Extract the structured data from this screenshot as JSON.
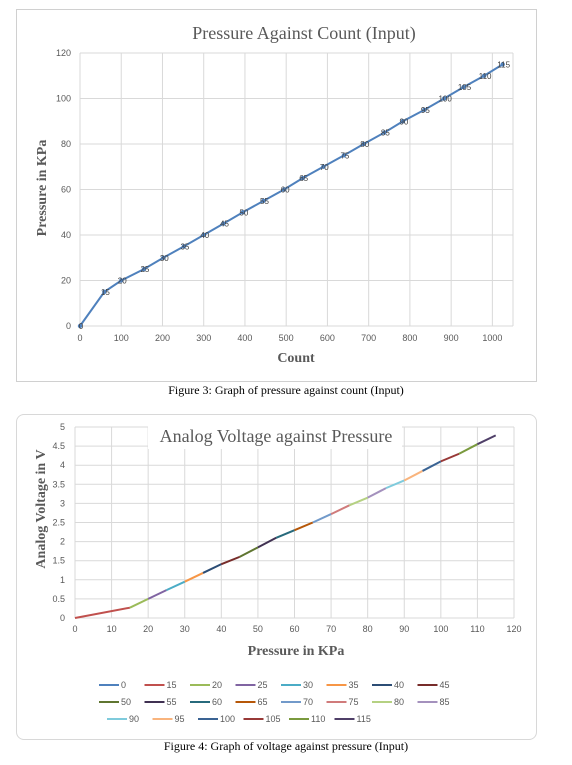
{
  "chart_data": [
    {
      "type": "line",
      "title": "Pressure Against Count (Input)",
      "xlabel": "Count",
      "ylabel": "Pressure in KPa",
      "xlim": [
        0,
        1050
      ],
      "ylim": [
        0,
        120
      ],
      "xticks": [
        0,
        100,
        200,
        300,
        400,
        500,
        600,
        700,
        800,
        900,
        1000
      ],
      "yticks": [
        0,
        20,
        40,
        60,
        80,
        100,
        120
      ],
      "grid": true,
      "legend": "none",
      "color": "#4f81bd",
      "x": [
        0,
        59,
        100,
        155,
        202,
        252,
        300,
        348,
        395,
        445,
        495,
        540,
        590,
        640,
        688,
        738,
        783,
        835,
        883,
        930,
        980,
        1025
      ],
      "y": [
        0,
        15,
        20,
        25,
        30,
        35,
        40,
        45,
        50,
        55,
        60,
        65,
        70,
        75,
        80,
        85,
        90,
        95,
        100,
        105,
        110,
        115
      ],
      "data_labels": [
        "0",
        "15",
        "20",
        "25",
        "30",
        "35",
        "40",
        "45",
        "50",
        "55",
        "60",
        "65",
        "70",
        "75",
        "80",
        "85",
        "90",
        "95",
        "100",
        "105",
        "110",
        "115"
      ]
    },
    {
      "type": "line",
      "title": "Analog Voltage against Pressure",
      "xlabel": "Pressure in KPa",
      "ylabel": "Analog Voltage in V",
      "xlim": [
        0,
        120
      ],
      "ylim": [
        0,
        5
      ],
      "xticks": [
        0,
        10,
        20,
        30,
        40,
        50,
        60,
        70,
        80,
        90,
        100,
        110,
        120
      ],
      "yticks": [
        0,
        0.5,
        1,
        1.5,
        2,
        2.5,
        3,
        3.5,
        4,
        4.5,
        5
      ],
      "ytick_labels": [
        "0",
        "0.5",
        "1",
        "1.5",
        "2",
        "2.5",
        "3",
        "3.5",
        "4",
        "4.5",
        "5"
      ],
      "grid": true,
      "legend": "bottom",
      "x": [
        0,
        15,
        20,
        25,
        30,
        35,
        40,
        45,
        50,
        55,
        60,
        65,
        70,
        75,
        80,
        85,
        90,
        95,
        100,
        105,
        110,
        115
      ],
      "y": [
        0,
        0.27,
        0.5,
        0.73,
        0.95,
        1.18,
        1.41,
        1.6,
        1.85,
        2.1,
        2.3,
        2.5,
        2.72,
        2.95,
        3.15,
        3.4,
        3.6,
        3.85,
        4.1,
        4.3,
        4.55,
        4.78
      ],
      "series": [
        {
          "name": "0",
          "color": "#4f81bd"
        },
        {
          "name": "15",
          "color": "#c0504d"
        },
        {
          "name": "20",
          "color": "#9bbb59"
        },
        {
          "name": "25",
          "color": "#8064a2"
        },
        {
          "name": "30",
          "color": "#4bacc6"
        },
        {
          "name": "35",
          "color": "#f79646"
        },
        {
          "name": "40",
          "color": "#2c4d75"
        },
        {
          "name": "45",
          "color": "#772c2a"
        },
        {
          "name": "50",
          "color": "#5f7530"
        },
        {
          "name": "55",
          "color": "#403152"
        },
        {
          "name": "60",
          "color": "#276a7c"
        },
        {
          "name": "65",
          "color": "#b65708"
        },
        {
          "name": "70",
          "color": "#729aca"
        },
        {
          "name": "75",
          "color": "#d07b7b"
        },
        {
          "name": "80",
          "color": "#b5d182"
        },
        {
          "name": "85",
          "color": "#a491bd"
        },
        {
          "name": "90",
          "color": "#7fcbdc"
        },
        {
          "name": "95",
          "color": "#f9b47d"
        },
        {
          "name": "100",
          "color": "#3a6393"
        },
        {
          "name": "105",
          "color": "#983937"
        },
        {
          "name": "110",
          "color": "#7a9a3e"
        },
        {
          "name": "115",
          "color": "#4f3f68"
        }
      ]
    }
  ],
  "captions": {
    "fig3": "Figure 3: Graph of pressure against count (Input)",
    "fig4": "Figure 4: Graph of voltage against pressure (Input)"
  }
}
